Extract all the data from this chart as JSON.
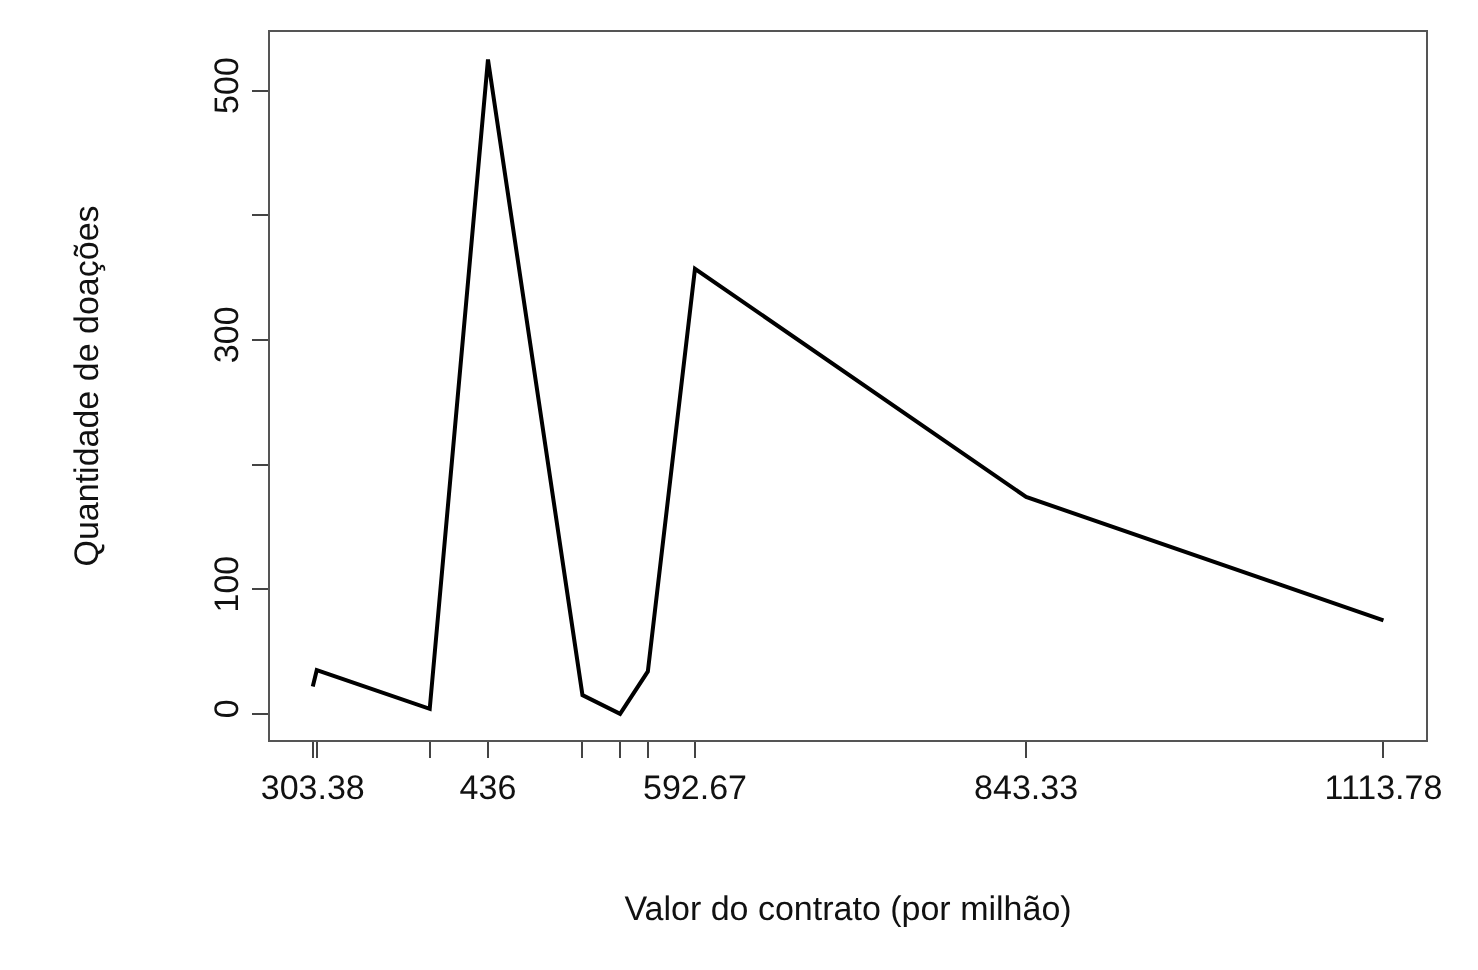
{
  "chart_data": {
    "type": "line",
    "xlabel": "Valor do contrato (por milhão)",
    "ylabel": "Quantidade de doações",
    "x": [
      303.38,
      306.4,
      391.9,
      436,
      507.5,
      536,
      557,
      592.67,
      843.33,
      1113.78
    ],
    "series": [
      {
        "color": "#000000",
        "values": [
          22,
          35,
          4,
          525,
          15,
          0,
          34,
          357,
          174,
          75
        ]
      }
    ],
    "xlim": [
      271,
      1146
    ],
    "ylim": [
      -21,
      547
    ],
    "xticks": [
      303.38,
      {
        "value": 306.4,
        "label": null
      },
      {
        "value": 391.9,
        "label": null
      },
      436,
      {
        "value": 507.5,
        "label": null
      },
      {
        "value": 536,
        "label": null
      },
      {
        "value": 557,
        "label": null
      },
      592.67,
      843.33,
      1113.78
    ],
    "yticks": [
      0,
      100,
      {
        "value": 200,
        "label": null
      },
      300,
      {
        "value": 400,
        "label": null
      },
      500
    ],
    "marker": "none",
    "line_style": "solid"
  }
}
